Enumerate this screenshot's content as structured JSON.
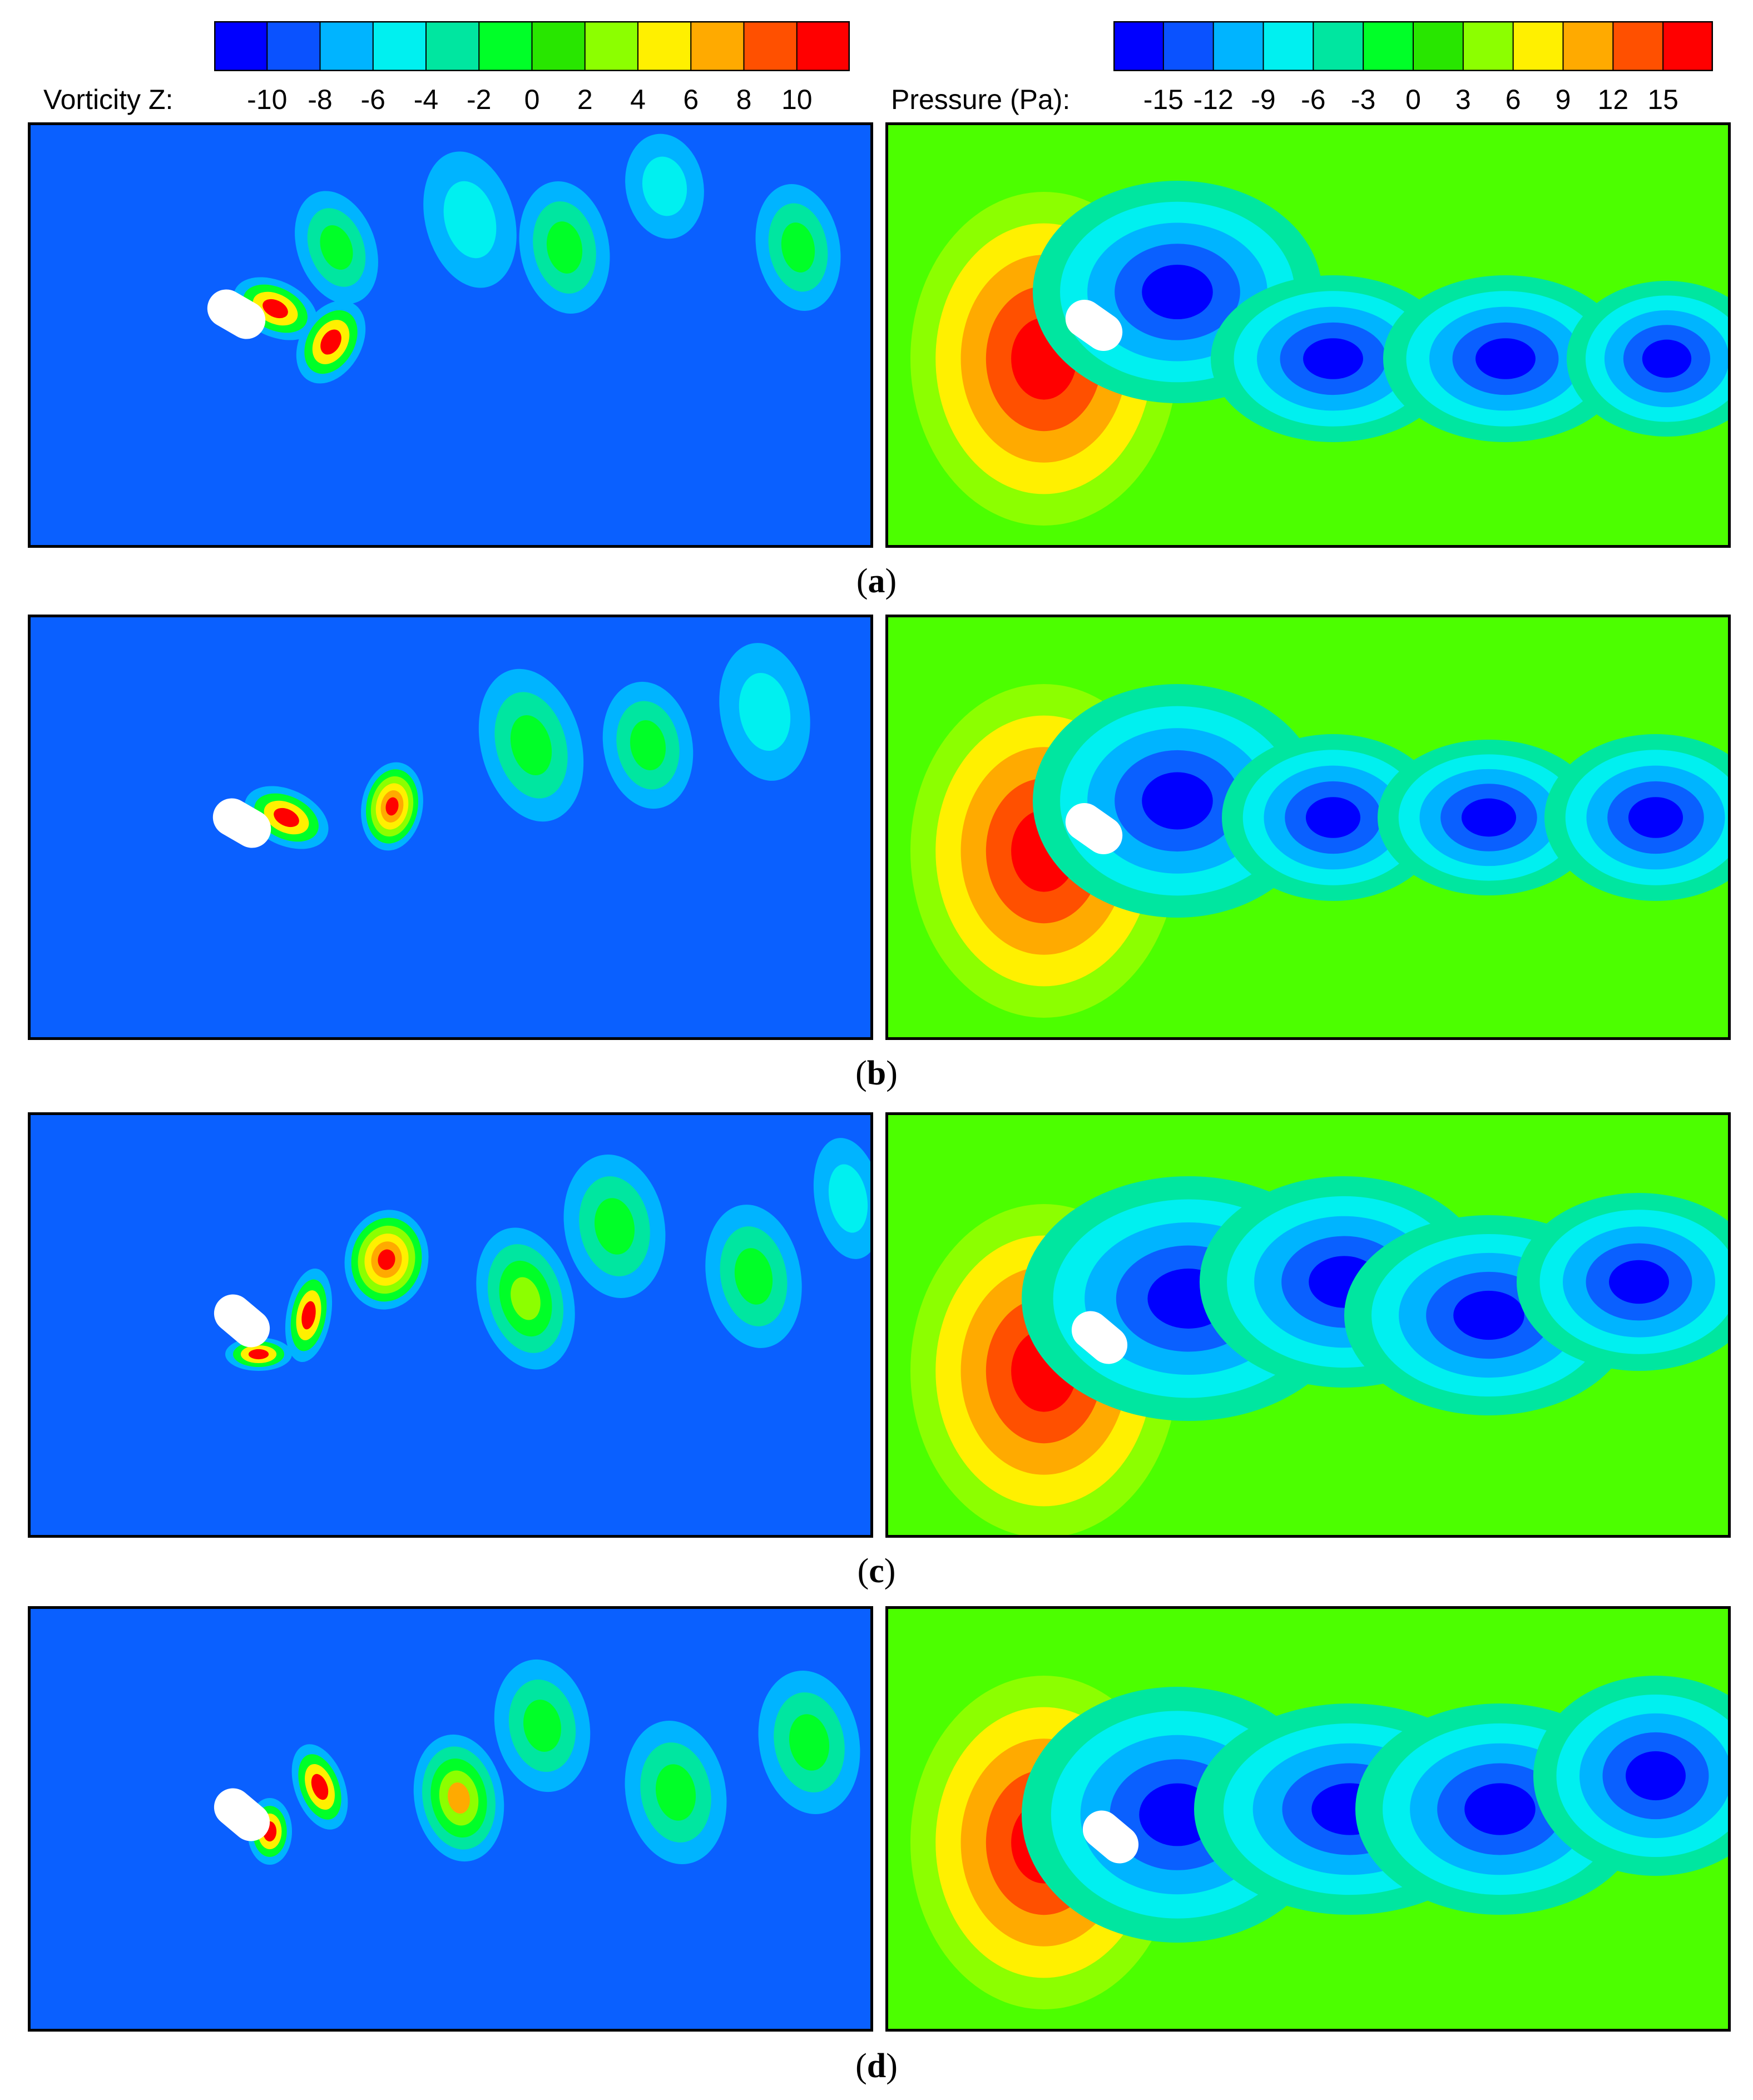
{
  "vorticity_legend": {
    "title": "Vorticity Z:",
    "ticks": [
      "-10",
      "-8",
      "-6",
      "-4",
      "-2",
      "0",
      "2",
      "4",
      "6",
      "8",
      "10"
    ],
    "colors": [
      "#0000ff",
      "#0a52ff",
      "#00b4ff",
      "#00f0f0",
      "#00e6a0",
      "#00ff28",
      "#28e600",
      "#8cff00",
      "#fff000",
      "#ffaa00",
      "#ff5000",
      "#ff0000"
    ]
  },
  "pressure_legend": {
    "title": "Pressure (Pa):",
    "ticks": [
      "-15",
      "-12",
      "-9",
      "-6",
      "-3",
      "0",
      "3",
      "6",
      "9",
      "12",
      "15"
    ],
    "colors": [
      "#0000ff",
      "#0a52ff",
      "#00b4ff",
      "#00f0f0",
      "#00e6a0",
      "#00ff28",
      "#28e600",
      "#8cff00",
      "#fff000",
      "#ffaa00",
      "#ff5000",
      "#ff0000"
    ]
  },
  "panels": [
    {
      "label": "a"
    },
    {
      "label": "b"
    },
    {
      "label": "c"
    },
    {
      "label": "d"
    }
  ],
  "colors": {
    "field_blue": "#0a60ff",
    "field_green": "#4cff00",
    "cylinder": "#ffffff"
  }
}
